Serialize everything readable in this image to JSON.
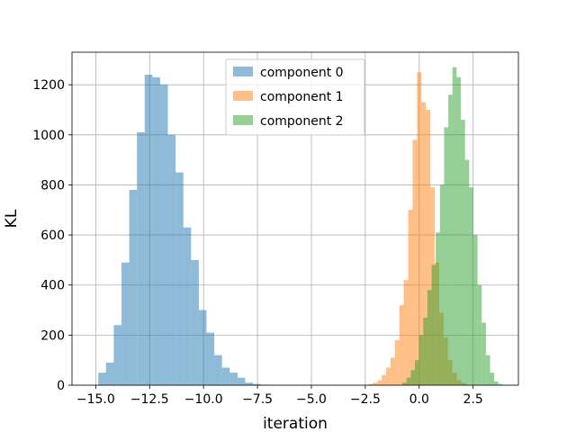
{
  "chart_data": {
    "type": "histogram",
    "title": "",
    "xlabel": "iteration",
    "ylabel": "KL",
    "xlim": [
      -16.1,
      4.6
    ],
    "ylim": [
      0,
      1330
    ],
    "grid": true,
    "legend": "upper center",
    "x_ticks": [
      -15.0,
      -12.5,
      -10.0,
      -7.5,
      -5.0,
      -2.5,
      0.0,
      2.5
    ],
    "x_tick_labels": [
      "−15.0",
      "−12.5",
      "−10.0",
      "−7.5",
      "−5.0",
      "−2.5",
      "0.0",
      "2.5"
    ],
    "y_ticks": [
      0,
      200,
      400,
      600,
      800,
      1000,
      1200
    ],
    "y_tick_labels": [
      "0",
      "200",
      "400",
      "600",
      "800",
      "1000",
      "1200"
    ],
    "series": [
      {
        "name": "component 0",
        "color": "#1f77b4",
        "alpha": 0.5,
        "bin_start": -14.88,
        "bin_width": 0.3585,
        "counts": [
          50,
          90,
          240,
          490,
          780,
          1010,
          1240,
          1230,
          1200,
          1000,
          850,
          630,
          500,
          300,
          210,
          120,
          70,
          50,
          30,
          10,
          5,
          2
        ]
      },
      {
        "name": "component 1",
        "color": "#ff7f0e",
        "alpha": 0.5,
        "bin_start": -2.35,
        "bin_width": 0.2047,
        "counts": [
          5,
          10,
          20,
          40,
          70,
          110,
          180,
          320,
          420,
          700,
          980,
          1250,
          1130,
          1100,
          790,
          490,
          290,
          190,
          100,
          50,
          20,
          10
        ]
      },
      {
        "name": "component 2",
        "color": "#2ca02c",
        "alpha": 0.5,
        "bin_start": -0.78,
        "bin_width": 0.1936,
        "counts": [
          10,
          30,
          60,
          100,
          200,
          270,
          380,
          480,
          610,
          800,
          1030,
          1160,
          1270,
          1230,
          1060,
          900,
          790,
          600,
          400,
          250,
          120,
          50,
          15,
          5
        ]
      }
    ]
  }
}
